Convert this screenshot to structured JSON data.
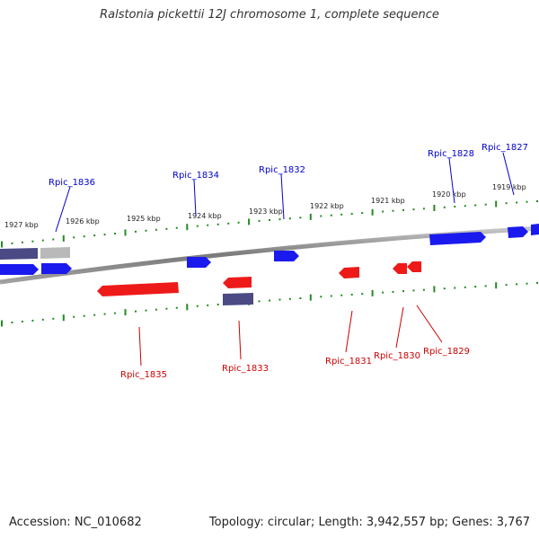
{
  "title": "Ralstonia pickettii 12J chromosome 1, complete sequence",
  "accession": "Accession: NC_010682",
  "summary": "Topology: circular; Length: 3,942,557 bp; Genes: 3,767",
  "colors": {
    "forward_gene": "#1a1aee",
    "reverse_gene": "#ee1a1a",
    "other_feature": "#4b4a85",
    "pseudo_feature": "#b9b9b9",
    "tick": "#228b22",
    "forward_label": "#0000cc",
    "reverse_label": "#cc0000",
    "backbone": "#888888"
  },
  "kbp_ticks": [
    "1927 kbp",
    "1926 kbp",
    "1925 kbp",
    "1924 kbp",
    "1923 kbp",
    "1922 kbp",
    "1921 kbp",
    "1920 kbp",
    "1919 kbp"
  ],
  "forward_genes": [
    "Rpic_1836",
    "Rpic_1834",
    "Rpic_1832",
    "Rpic_1828",
    "Rpic_1827"
  ],
  "reverse_genes": [
    "Rpic_1835",
    "Rpic_1833",
    "Rpic_1831",
    "Rpic_1830",
    "Rpic_1829"
  ]
}
